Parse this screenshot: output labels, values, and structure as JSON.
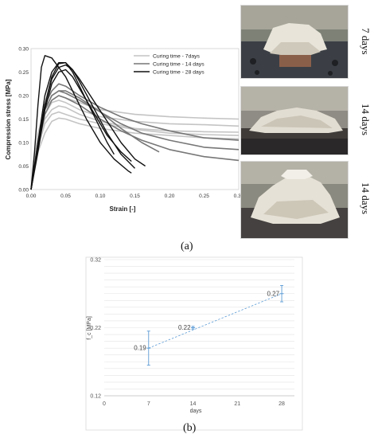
{
  "panel_a_label": "(a)",
  "panel_b_label": "(b)",
  "photos": [
    {
      "label": "7 days"
    },
    {
      "label": "14 days"
    },
    {
      "label": "14 days"
    }
  ],
  "chart_data": [
    {
      "type": "line",
      "title": "",
      "xlabel": "Strain [-]",
      "ylabel": "Compression stress [MPa]",
      "xlim": [
        0,
        0.3
      ],
      "ylim": [
        0,
        0.3
      ],
      "xticks": [
        "0.00",
        "0.05",
        "0.10",
        "0.15",
        "0.20",
        "0.25",
        "0.30"
      ],
      "yticks": [
        "0.00",
        "0.05",
        "0.10",
        "0.15",
        "0.20",
        "0.25",
        "0.30"
      ],
      "grid": false,
      "legend_position": "top-right",
      "colors": {
        "7 days": "#c4c4c4",
        "14 days": "#777777",
        "28 days": "#111111"
      },
      "series": [
        {
          "name": "Curing time - 7days",
          "group": "7 days",
          "x": [
            0,
            0.005,
            0.01,
            0.02,
            0.03,
            0.04,
            0.05,
            0.07,
            0.1,
            0.15,
            0.2,
            0.25,
            0.3
          ],
          "y": [
            0,
            0.06,
            0.12,
            0.17,
            0.19,
            0.2,
            0.195,
            0.185,
            0.17,
            0.16,
            0.155,
            0.152,
            0.15
          ]
        },
        {
          "name": "",
          "group": "7 days",
          "x": [
            0,
            0.005,
            0.01,
            0.02,
            0.03,
            0.04,
            0.05,
            0.07,
            0.1,
            0.15,
            0.2,
            0.25,
            0.3
          ],
          "y": [
            0,
            0.05,
            0.1,
            0.16,
            0.185,
            0.19,
            0.185,
            0.17,
            0.155,
            0.145,
            0.14,
            0.138,
            0.135
          ]
        },
        {
          "name": "",
          "group": "7 days",
          "x": [
            0,
            0.005,
            0.01,
            0.02,
            0.03,
            0.04,
            0.05,
            0.07,
            0.1,
            0.15,
            0.2,
            0.25,
            0.3
          ],
          "y": [
            0,
            0.05,
            0.1,
            0.15,
            0.17,
            0.178,
            0.175,
            0.16,
            0.145,
            0.13,
            0.125,
            0.123,
            0.122
          ]
        },
        {
          "name": "",
          "group": "7 days",
          "x": [
            0,
            0.005,
            0.01,
            0.02,
            0.03,
            0.04,
            0.05,
            0.07,
            0.1,
            0.15,
            0.2,
            0.25,
            0.3
          ],
          "y": [
            0,
            0.04,
            0.08,
            0.12,
            0.145,
            0.152,
            0.15,
            0.14,
            0.13,
            0.12,
            0.115,
            0.11,
            0.108
          ]
        },
        {
          "name": "",
          "group": "7 days",
          "x": [
            0,
            0.005,
            0.01,
            0.02,
            0.03,
            0.04,
            0.05,
            0.07,
            0.1,
            0.15,
            0.2,
            0.25,
            0.3
          ],
          "y": [
            0,
            0.05,
            0.09,
            0.14,
            0.16,
            0.165,
            0.16,
            0.15,
            0.14,
            0.128,
            0.12,
            0.117,
            0.115
          ]
        },
        {
          "name": "Curing time - 14 days",
          "group": "14 days",
          "x": [
            0,
            0.01,
            0.02,
            0.03,
            0.04,
            0.05,
            0.07,
            0.1,
            0.13,
            0.16,
            0.2,
            0.25,
            0.3
          ],
          "y": [
            0,
            0.1,
            0.18,
            0.21,
            0.225,
            0.22,
            0.2,
            0.175,
            0.155,
            0.14,
            0.125,
            0.11,
            0.105
          ]
        },
        {
          "name": "",
          "group": "14 days",
          "x": [
            0,
            0.01,
            0.02,
            0.03,
            0.04,
            0.05,
            0.07,
            0.1,
            0.13,
            0.16,
            0.2,
            0.25,
            0.3
          ],
          "y": [
            0,
            0.1,
            0.17,
            0.2,
            0.21,
            0.205,
            0.19,
            0.165,
            0.14,
            0.12,
            0.105,
            0.09,
            0.085
          ]
        },
        {
          "name": "",
          "group": "14 days",
          "x": [
            0,
            0.01,
            0.02,
            0.03,
            0.04,
            0.05,
            0.07,
            0.1,
            0.13,
            0.16,
            0.2,
            0.25,
            0.3
          ],
          "y": [
            0,
            0.09,
            0.16,
            0.19,
            0.2,
            0.195,
            0.18,
            0.15,
            0.125,
            0.105,
            0.085,
            0.07,
            0.062
          ]
        },
        {
          "name": "",
          "group": "14 days",
          "x": [
            0,
            0.01,
            0.02,
            0.03,
            0.04,
            0.05,
            0.07,
            0.1,
            0.13,
            0.16,
            0.185
          ],
          "y": [
            0,
            0.1,
            0.17,
            0.2,
            0.21,
            0.21,
            0.195,
            0.165,
            0.13,
            0.1,
            0.08
          ]
        },
        {
          "name": "Curing time - 28 days",
          "group": "28 days",
          "x": [
            0,
            0.005,
            0.01,
            0.015,
            0.02,
            0.03,
            0.04,
            0.05,
            0.06,
            0.08,
            0.1,
            0.12,
            0.14,
            0.145
          ],
          "y": [
            0,
            0.08,
            0.18,
            0.26,
            0.285,
            0.28,
            0.26,
            0.24,
            0.21,
            0.15,
            0.1,
            0.065,
            0.04,
            0.035
          ]
        },
        {
          "name": "",
          "group": "28 days",
          "x": [
            0,
            0.01,
            0.02,
            0.03,
            0.04,
            0.05,
            0.06,
            0.07,
            0.09,
            0.11,
            0.13,
            0.15
          ],
          "y": [
            0,
            0.1,
            0.2,
            0.25,
            0.27,
            0.27,
            0.255,
            0.23,
            0.175,
            0.12,
            0.075,
            0.045
          ]
        },
        {
          "name": "",
          "group": "28 days",
          "x": [
            0,
            0.01,
            0.02,
            0.03,
            0.04,
            0.05,
            0.06,
            0.07,
            0.09,
            0.11,
            0.13,
            0.15,
            0.165
          ],
          "y": [
            0,
            0.09,
            0.18,
            0.235,
            0.26,
            0.265,
            0.255,
            0.235,
            0.19,
            0.145,
            0.1,
            0.065,
            0.05
          ]
        },
        {
          "name": "",
          "group": "28 days",
          "x": [
            0,
            0.01,
            0.02,
            0.03,
            0.04,
            0.05,
            0.06,
            0.07,
            0.09,
            0.11,
            0.13,
            0.145
          ],
          "y": [
            0,
            0.08,
            0.17,
            0.225,
            0.25,
            0.255,
            0.24,
            0.215,
            0.165,
            0.115,
            0.08,
            0.06
          ]
        },
        {
          "name": "",
          "group": "28 days",
          "x": [
            0,
            0.01,
            0.02,
            0.03,
            0.04,
            0.05,
            0.06,
            0.07,
            0.09,
            0.11,
            0.12
          ],
          "y": [
            0,
            0.09,
            0.18,
            0.24,
            0.268,
            0.27,
            0.25,
            0.22,
            0.16,
            0.1,
            0.075
          ]
        }
      ]
    },
    {
      "type": "scatter",
      "title": "",
      "xlabel": "days",
      "ylabel": "f_c [MPa]",
      "xlim": [
        0,
        30
      ],
      "ylim": [
        0.12,
        0.32
      ],
      "xticks": [
        0,
        7,
        14,
        21,
        28
      ],
      "yticks": [
        "0.12",
        "0.22",
        "0.32"
      ],
      "grid": true,
      "trendline": "linear, dashed",
      "marker_color": "#5b9bd5",
      "points": [
        {
          "x": 7,
          "y": 0.19,
          "err": 0.025,
          "label": "0.19"
        },
        {
          "x": 14,
          "y": 0.22,
          "err": 0.002,
          "label": "0.22"
        },
        {
          "x": 28,
          "y": 0.27,
          "err": 0.012,
          "label": "0.27"
        }
      ]
    }
  ]
}
